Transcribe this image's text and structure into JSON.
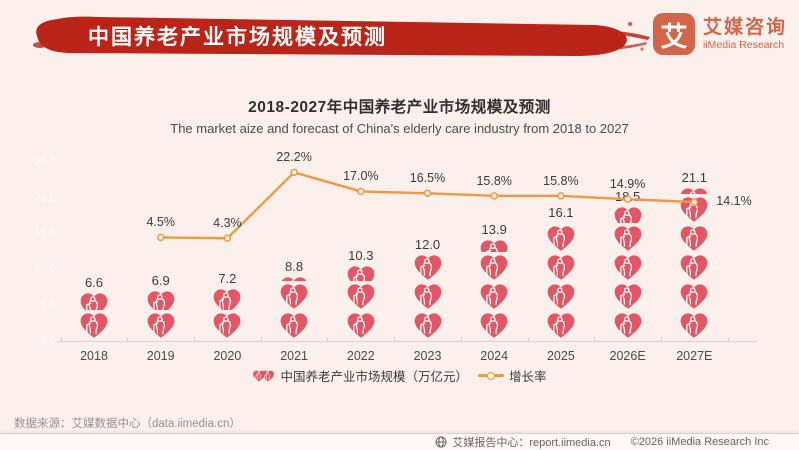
{
  "header": {
    "title": "中国养老产业市场规模及预测",
    "brush_color": "#bb2418"
  },
  "logo": {
    "glyph": "艾",
    "name_cn": "艾媒咨询",
    "name_en": "iiMedia Research",
    "color": "#d2654a"
  },
  "chart_data": {
    "type": "pictogram-bar+line",
    "title": "2018-2027年中国养老产业市场规模及预测",
    "subtitle": "The market aize and forecast of China's elderly care industry from 2018 to 2027",
    "categories": [
      "2018",
      "2019",
      "2020",
      "2021",
      "2022",
      "2023",
      "2024",
      "2025",
      "2026E",
      "2027E"
    ],
    "series": [
      {
        "name": "中国养老产业市场规模（万亿元）",
        "type": "pictogram_bar",
        "icon": "heart-elder-icon",
        "units_per_icon": 4,
        "values": [
          6.6,
          6.9,
          7.2,
          8.8,
          10.3,
          12.0,
          13.9,
          16.1,
          18.5,
          21.1
        ]
      },
      {
        "name": "增长率",
        "type": "line",
        "unit": "%",
        "values": [
          null,
          4.5,
          4.3,
          22.2,
          17.0,
          16.5,
          15.8,
          15.8,
          14.9,
          14.1
        ]
      }
    ],
    "left_axis": {
      "ticks": [
        25.0,
        20.0,
        15.0,
        10.0,
        5.0,
        0.0
      ],
      "visibility": "faint"
    },
    "legend": [
      "中国养老产业市场规模（万亿元）",
      "增长率"
    ],
    "colors": {
      "bar": "#e25666",
      "line": "#ed9a41",
      "marker_fill": "#fdeedd",
      "label": "#3c3c3c"
    },
    "layout": {
      "grid": false,
      "legend_position": "bottom-center"
    }
  },
  "footer": {
    "source": "数据来源：艾媒数据中心（data.iimedia.cn）",
    "report_center": "艾媒报告中心：report.iimedia.cn",
    "copyright": "©2026  iiMedia Research  Inc"
  }
}
